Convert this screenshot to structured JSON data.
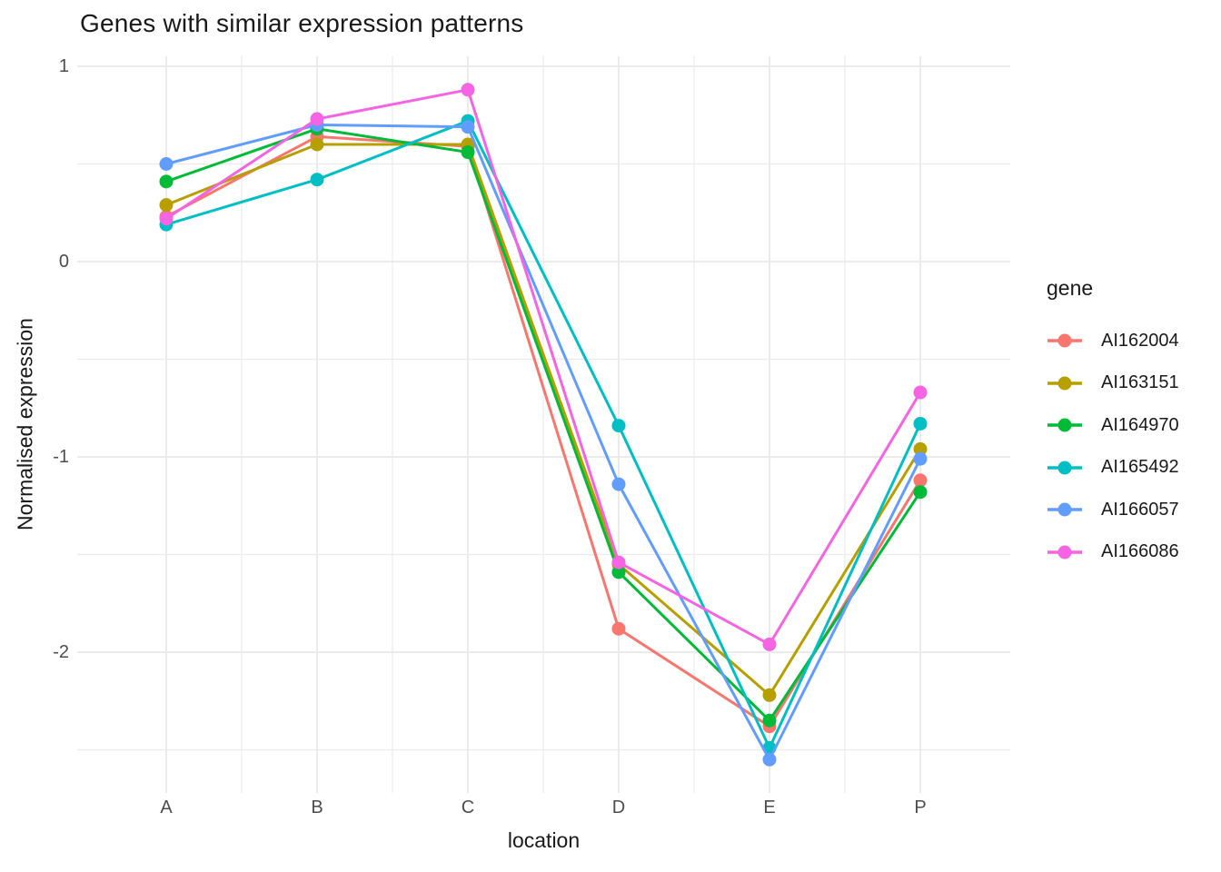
{
  "title": "Genes with similar expression patterns",
  "x_axis": {
    "label": "location",
    "ticks": [
      "A",
      "B",
      "C",
      "D",
      "E",
      "P"
    ]
  },
  "y_axis": {
    "label": "Normalised expression",
    "ticks": [
      "1",
      "0",
      "-1",
      "-2"
    ],
    "tick_values": [
      1,
      0,
      -1,
      -2
    ]
  },
  "legend": {
    "title": "gene",
    "position": "right"
  },
  "style": {
    "background": "#FFFFFF",
    "grid_color": "#EBEBEB",
    "tick_label_color": "#4D4D4D",
    "text_color": "#1A1A1A"
  },
  "chart_data": {
    "type": "line",
    "title": "Genes with similar expression patterns",
    "xlabel": "location",
    "ylabel": "Normalised expression",
    "x": [
      "A",
      "B",
      "C",
      "D",
      "E",
      "P"
    ],
    "ylim": [
      -2.72,
      1.07
    ],
    "y_major_gridlines": [
      1,
      0,
      -1,
      -2
    ],
    "y_minor_gridlines": [
      0.5,
      -0.5,
      -1.5,
      -2.5
    ],
    "x_minor_gridlines_between_categories": true,
    "grid": true,
    "legend_title": "gene",
    "legend_position": "right",
    "marker": "circle",
    "series": [
      {
        "name": "AI162004",
        "color": "#F8766D",
        "values": [
          0.23,
          0.64,
          0.59,
          -1.88,
          -2.38,
          -1.12
        ]
      },
      {
        "name": "AI163151",
        "color": "#B79F00",
        "values": [
          0.29,
          0.6,
          0.6,
          -1.55,
          -2.22,
          -0.96
        ]
      },
      {
        "name": "AI164970",
        "color": "#00BA38",
        "values": [
          0.41,
          0.68,
          0.56,
          -1.59,
          -2.35,
          -1.18
        ]
      },
      {
        "name": "AI165492",
        "color": "#00BFC4",
        "values": [
          0.19,
          0.42,
          0.72,
          -0.84,
          -2.49,
          -0.83
        ]
      },
      {
        "name": "AI166057",
        "color": "#619CFF",
        "values": [
          0.5,
          0.7,
          0.69,
          -1.14,
          -2.55,
          -1.01
        ]
      },
      {
        "name": "AI166086",
        "color": "#F564E3",
        "values": [
          0.22,
          0.73,
          0.88,
          -1.54,
          -1.96,
          -0.67
        ]
      }
    ]
  }
}
